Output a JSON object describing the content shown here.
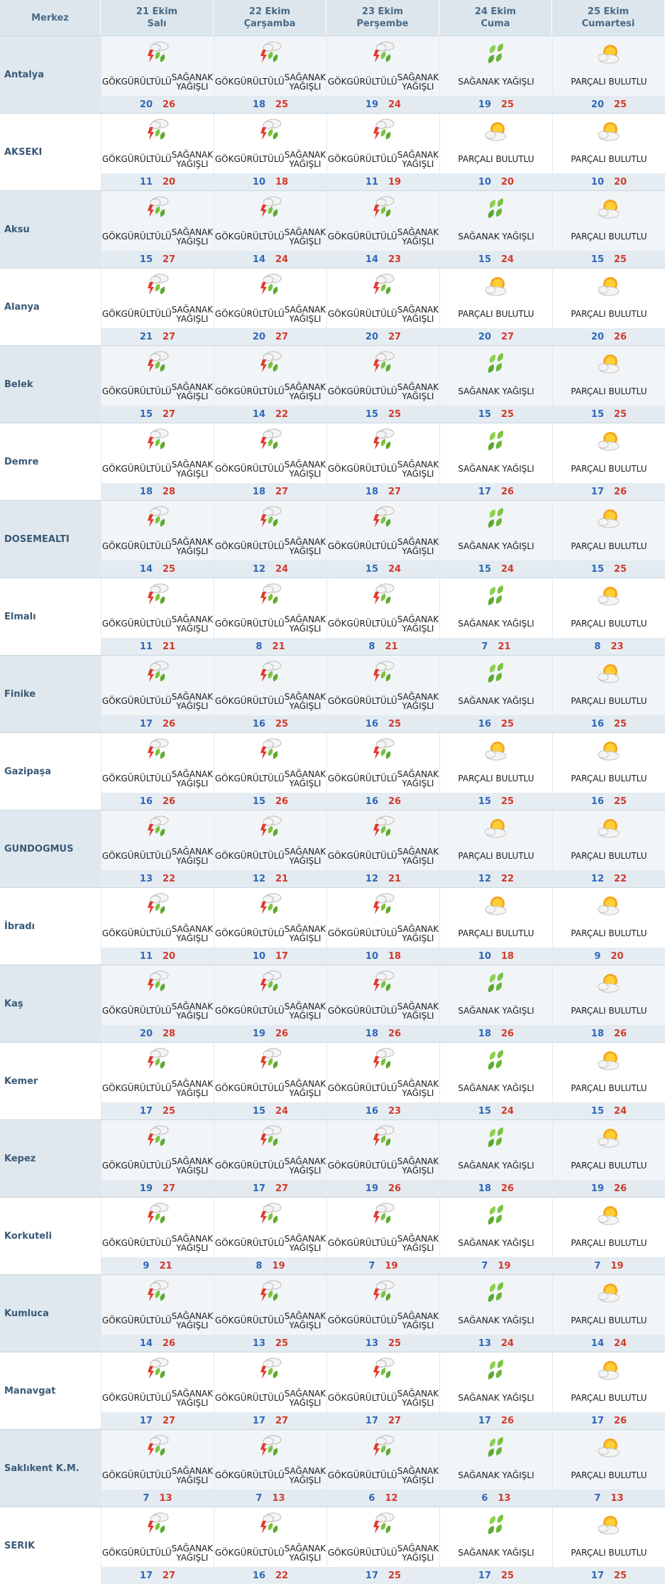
{
  "header": {
    "region_label": "Merkez",
    "days": [
      {
        "date": "21 Ekim",
        "day": "Salı"
      },
      {
        "date": "22 Ekim",
        "day": "Çarşamba"
      },
      {
        "date": "23 Ekim",
        "day": "Perşembe"
      },
      {
        "date": "24 Ekim",
        "day": "Cuma"
      },
      {
        "date": "25 Ekim",
        "day": "Cumartesi"
      }
    ]
  },
  "conditions": {
    "storm": {
      "line1": "GÖKGÜRÜLTÜLÜ",
      "line2": "SAĞANAK YAĞIŞLI",
      "icon": "thunder-rain-icon"
    },
    "shower": {
      "line1": "SAĞANAK YAĞIŞLI",
      "line2": "",
      "icon": "shower-icon"
    },
    "partly": {
      "line1": "PARÇALI BULUTLU",
      "line2": "",
      "icon": "partly-cloudy-icon"
    }
  },
  "colors": {
    "min_temp": "#2f68b8",
    "max_temp": "#d23a2b",
    "header_bg": "#dde6ec"
  },
  "cities": [
    {
      "name": "Antalya",
      "days": [
        {
          "cond": "storm",
          "min": 20,
          "max": 26
        },
        {
          "cond": "storm",
          "min": 18,
          "max": 25
        },
        {
          "cond": "storm",
          "min": 19,
          "max": 24
        },
        {
          "cond": "shower",
          "min": 19,
          "max": 25
        },
        {
          "cond": "partly",
          "min": 20,
          "max": 25
        }
      ]
    },
    {
      "name": "AKSEKI",
      "days": [
        {
          "cond": "storm",
          "min": 11,
          "max": 20
        },
        {
          "cond": "storm",
          "min": 10,
          "max": 18
        },
        {
          "cond": "storm",
          "min": 11,
          "max": 19
        },
        {
          "cond": "partly",
          "min": 10,
          "max": 20
        },
        {
          "cond": "partly",
          "min": 10,
          "max": 20
        }
      ]
    },
    {
      "name": "Aksu",
      "days": [
        {
          "cond": "storm",
          "min": 15,
          "max": 27
        },
        {
          "cond": "storm",
          "min": 14,
          "max": 24
        },
        {
          "cond": "storm",
          "min": 14,
          "max": 23
        },
        {
          "cond": "shower",
          "min": 15,
          "max": 24
        },
        {
          "cond": "partly",
          "min": 15,
          "max": 25
        }
      ]
    },
    {
      "name": "Alanya",
      "days": [
        {
          "cond": "storm",
          "min": 21,
          "max": 27
        },
        {
          "cond": "storm",
          "min": 20,
          "max": 27
        },
        {
          "cond": "storm",
          "min": 20,
          "max": 27
        },
        {
          "cond": "partly",
          "min": 20,
          "max": 27
        },
        {
          "cond": "partly",
          "min": 20,
          "max": 26
        }
      ]
    },
    {
      "name": "Belek",
      "days": [
        {
          "cond": "storm",
          "min": 15,
          "max": 27
        },
        {
          "cond": "storm",
          "min": 14,
          "max": 22
        },
        {
          "cond": "storm",
          "min": 15,
          "max": 25
        },
        {
          "cond": "shower",
          "min": 15,
          "max": 25
        },
        {
          "cond": "partly",
          "min": 15,
          "max": 25
        }
      ]
    },
    {
      "name": "Demre",
      "days": [
        {
          "cond": "storm",
          "min": 18,
          "max": 28
        },
        {
          "cond": "storm",
          "min": 18,
          "max": 27
        },
        {
          "cond": "storm",
          "min": 18,
          "max": 27
        },
        {
          "cond": "shower",
          "min": 17,
          "max": 26
        },
        {
          "cond": "partly",
          "min": 17,
          "max": 26
        }
      ]
    },
    {
      "name": "DOSEMEALTI",
      "days": [
        {
          "cond": "storm",
          "min": 14,
          "max": 25
        },
        {
          "cond": "storm",
          "min": 12,
          "max": 24
        },
        {
          "cond": "storm",
          "min": 15,
          "max": 24
        },
        {
          "cond": "shower",
          "min": 15,
          "max": 24
        },
        {
          "cond": "partly",
          "min": 15,
          "max": 25
        }
      ]
    },
    {
      "name": "Elmalı",
      "days": [
        {
          "cond": "storm",
          "min": 11,
          "max": 21
        },
        {
          "cond": "storm",
          "min": 8,
          "max": 21
        },
        {
          "cond": "storm",
          "min": 8,
          "max": 21
        },
        {
          "cond": "shower",
          "min": 7,
          "max": 21
        },
        {
          "cond": "partly",
          "min": 8,
          "max": 23
        }
      ]
    },
    {
      "name": "Finike",
      "days": [
        {
          "cond": "storm",
          "min": 17,
          "max": 26
        },
        {
          "cond": "storm",
          "min": 16,
          "max": 25
        },
        {
          "cond": "storm",
          "min": 16,
          "max": 25
        },
        {
          "cond": "shower",
          "min": 16,
          "max": 25
        },
        {
          "cond": "partly",
          "min": 16,
          "max": 25
        }
      ]
    },
    {
      "name": "Gazipaşa",
      "days": [
        {
          "cond": "storm",
          "min": 16,
          "max": 26
        },
        {
          "cond": "storm",
          "min": 15,
          "max": 26
        },
        {
          "cond": "storm",
          "min": 16,
          "max": 26
        },
        {
          "cond": "partly",
          "min": 15,
          "max": 25
        },
        {
          "cond": "partly",
          "min": 16,
          "max": 25
        }
      ]
    },
    {
      "name": "GUNDOGMUS",
      "days": [
        {
          "cond": "storm",
          "min": 13,
          "max": 22
        },
        {
          "cond": "storm",
          "min": 12,
          "max": 21
        },
        {
          "cond": "storm",
          "min": 12,
          "max": 21
        },
        {
          "cond": "partly",
          "min": 12,
          "max": 22
        },
        {
          "cond": "partly",
          "min": 12,
          "max": 22
        }
      ]
    },
    {
      "name": "İbradı",
      "days": [
        {
          "cond": "storm",
          "min": 11,
          "max": 20
        },
        {
          "cond": "storm",
          "min": 10,
          "max": 17
        },
        {
          "cond": "storm",
          "min": 10,
          "max": 18
        },
        {
          "cond": "partly",
          "min": 10,
          "max": 18
        },
        {
          "cond": "partly",
          "min": 9,
          "max": 20
        }
      ]
    },
    {
      "name": "Kaş",
      "days": [
        {
          "cond": "storm",
          "min": 20,
          "max": 28
        },
        {
          "cond": "storm",
          "min": 19,
          "max": 26
        },
        {
          "cond": "storm",
          "min": 18,
          "max": 26
        },
        {
          "cond": "shower",
          "min": 18,
          "max": 26
        },
        {
          "cond": "partly",
          "min": 18,
          "max": 26
        }
      ]
    },
    {
      "name": "Kemer",
      "days": [
        {
          "cond": "storm",
          "min": 17,
          "max": 25
        },
        {
          "cond": "storm",
          "min": 15,
          "max": 24
        },
        {
          "cond": "storm",
          "min": 16,
          "max": 23
        },
        {
          "cond": "shower",
          "min": 15,
          "max": 24
        },
        {
          "cond": "partly",
          "min": 15,
          "max": 24
        }
      ]
    },
    {
      "name": "Kepez",
      "days": [
        {
          "cond": "storm",
          "min": 19,
          "max": 27
        },
        {
          "cond": "storm",
          "min": 17,
          "max": 27
        },
        {
          "cond": "storm",
          "min": 19,
          "max": 26
        },
        {
          "cond": "shower",
          "min": 18,
          "max": 26
        },
        {
          "cond": "partly",
          "min": 19,
          "max": 26
        }
      ]
    },
    {
      "name": "Korkuteli",
      "days": [
        {
          "cond": "storm",
          "min": 9,
          "max": 21
        },
        {
          "cond": "storm",
          "min": 8,
          "max": 19
        },
        {
          "cond": "storm",
          "min": 7,
          "max": 19
        },
        {
          "cond": "shower",
          "min": 7,
          "max": 19
        },
        {
          "cond": "partly",
          "min": 7,
          "max": 19
        }
      ]
    },
    {
      "name": "Kumluca",
      "days": [
        {
          "cond": "storm",
          "min": 14,
          "max": 26
        },
        {
          "cond": "storm",
          "min": 13,
          "max": 25
        },
        {
          "cond": "storm",
          "min": 13,
          "max": 25
        },
        {
          "cond": "shower",
          "min": 13,
          "max": 24
        },
        {
          "cond": "partly",
          "min": 14,
          "max": 24
        }
      ]
    },
    {
      "name": "Manavgat",
      "days": [
        {
          "cond": "storm",
          "min": 17,
          "max": 27
        },
        {
          "cond": "storm",
          "min": 17,
          "max": 27
        },
        {
          "cond": "storm",
          "min": 17,
          "max": 27
        },
        {
          "cond": "shower",
          "min": 17,
          "max": 26
        },
        {
          "cond": "partly",
          "min": 17,
          "max": 26
        }
      ]
    },
    {
      "name": "Saklıkent K.M.",
      "days": [
        {
          "cond": "storm",
          "min": 7,
          "max": 13
        },
        {
          "cond": "storm",
          "min": 7,
          "max": 13
        },
        {
          "cond": "storm",
          "min": 6,
          "max": 12
        },
        {
          "cond": "shower",
          "min": 6,
          "max": 13
        },
        {
          "cond": "partly",
          "min": 7,
          "max": 13
        }
      ]
    },
    {
      "name": "SERIK",
      "days": [
        {
          "cond": "storm",
          "min": 17,
          "max": 27
        },
        {
          "cond": "storm",
          "min": 16,
          "max": 22
        },
        {
          "cond": "storm",
          "min": 17,
          "max": 25
        },
        {
          "cond": "shower",
          "min": 17,
          "max": 25
        },
        {
          "cond": "partly",
          "min": 17,
          "max": 25
        }
      ]
    }
  ]
}
